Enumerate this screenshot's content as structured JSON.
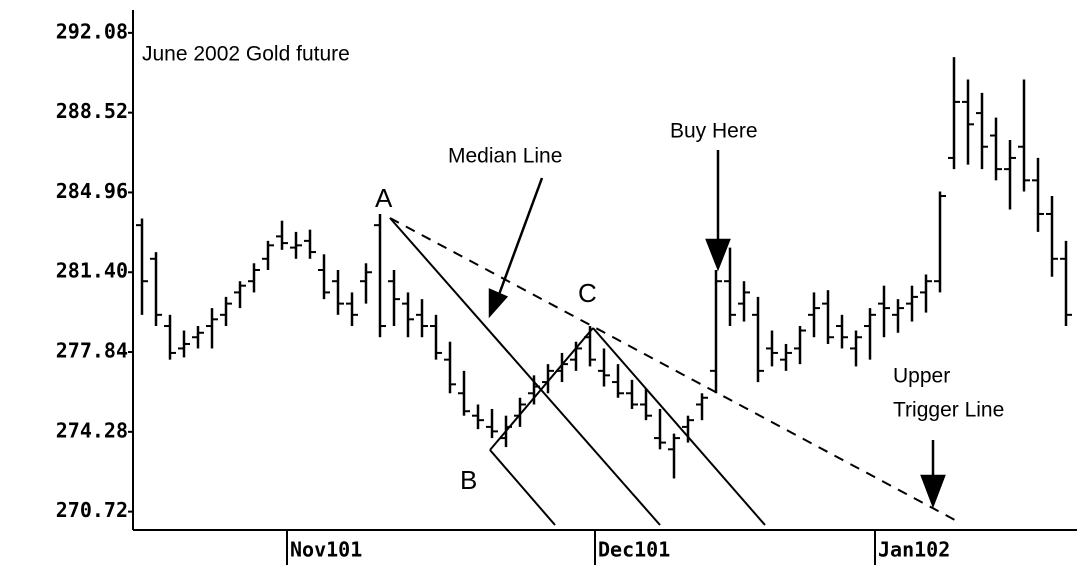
{
  "chart_data": {
    "type": "ohlc",
    "title": "June 2002 Gold future",
    "annotations": [
      "A",
      "B",
      "C",
      "Median Line",
      "Buy Here",
      "Upper",
      "Trigger Line"
    ],
    "color": "#000000",
    "ylim": [
      269.9,
      293.1
    ],
    "yticks": [
      270.72,
      274.28,
      277.84,
      {
        "value": 281.4,
        "label": "281.40"
      },
      284.96,
      288.52,
      292.08
    ],
    "categories": [
      null,
      null,
      null,
      null,
      null,
      null,
      null,
      null,
      null,
      null,
      "Nov101",
      null,
      null,
      null,
      null,
      null,
      null,
      null,
      null,
      null,
      null,
      null,
      null,
      null,
      null,
      null,
      null,
      null,
      null,
      null,
      null,
      null,
      "Dec101",
      null,
      null,
      null,
      null,
      null,
      null,
      null,
      null,
      null,
      null,
      null,
      null,
      null,
      null,
      null,
      null,
      null,
      null,
      null,
      "Jan102",
      null,
      null,
      null,
      null,
      null,
      null,
      null,
      null,
      null,
      null,
      null,
      null,
      null,
      null
    ],
    "open": [
      283.5,
      282.0,
      279.0,
      278.0,
      278.5,
      279.0,
      279.5,
      280.5,
      281.0,
      282.0,
      283.0,
      282.5,
      282.8,
      281.5,
      281.0,
      280.0,
      281.0,
      283.5,
      281.0,
      280.0,
      279.5,
      279.0,
      277.5,
      276.0,
      275.0,
      274.5,
      274.0,
      275.0,
      276.0,
      276.5,
      277.0,
      277.5,
      278.5,
      277.0,
      276.5,
      276.0,
      275.5,
      274.0,
      273.5,
      274.5,
      275.5,
      277.0,
      281.0,
      280.0,
      279.5,
      278.0,
      277.5,
      278.0,
      279.5,
      280.0,
      279.0,
      278.0,
      279.0,
      280.0,
      279.5,
      280.0,
      280.5,
      281.0,
      286.5,
      289.0,
      288.5,
      287.5,
      286.0,
      287.0,
      285.5,
      284.0,
      282.0
    ],
    "high": [
      283.8,
      282.3,
      279.5,
      278.8,
      279.0,
      279.8,
      280.3,
      281.0,
      281.8,
      282.8,
      283.7,
      283.2,
      283.3,
      282.2,
      281.5,
      280.5,
      281.8,
      284.0,
      281.5,
      280.5,
      280.2,
      279.5,
      278.3,
      277.0,
      275.5,
      275.3,
      275.0,
      275.8,
      276.8,
      277.3,
      277.8,
      278.3,
      279.0,
      278.0,
      277.3,
      276.6,
      276.2,
      275.3,
      274.2,
      275.0,
      276.0,
      281.5,
      282.5,
      281.0,
      280.3,
      278.8,
      278.2,
      279.0,
      280.5,
      280.6,
      279.5,
      278.8,
      279.8,
      280.8,
      280.2,
      280.8,
      281.3,
      285.0,
      291.0,
      290.0,
      289.4,
      288.3,
      287.3,
      290.0,
      286.5,
      284.8,
      282.8
    ],
    "low": [
      279.5,
      279.0,
      277.5,
      277.6,
      278.0,
      278.0,
      279.0,
      279.8,
      280.5,
      281.5,
      282.4,
      282.0,
      282.0,
      280.2,
      279.5,
      279.0,
      280.0,
      278.5,
      279.0,
      278.5,
      278.5,
      277.5,
      276.0,
      275.0,
      274.4,
      274.0,
      273.6,
      274.5,
      275.5,
      276.0,
      276.5,
      277.0,
      277.2,
      276.3,
      275.8,
      275.3,
      274.8,
      273.5,
      272.2,
      273.8,
      274.8,
      276.0,
      279.0,
      279.2,
      276.5,
      277.2,
      277.0,
      277.3,
      278.5,
      278.2,
      278.0,
      277.2,
      277.5,
      278.5,
      278.7,
      279.2,
      279.6,
      280.5,
      286.0,
      286.2,
      286.0,
      285.5,
      284.2,
      285.0,
      283.2,
      281.2,
      279.0
    ],
    "close": [
      281.0,
      279.5,
      277.8,
      278.2,
      278.7,
      279.3,
      280.0,
      280.8,
      281.5,
      282.6,
      282.7,
      282.6,
      282.3,
      280.5,
      280.0,
      279.5,
      281.4,
      279.0,
      280.2,
      279.3,
      279.0,
      277.8,
      276.4,
      275.2,
      274.8,
      274.3,
      274.5,
      275.5,
      276.3,
      277.0,
      277.3,
      278.0,
      277.5,
      276.8,
      276.0,
      275.5,
      275.0,
      273.8,
      274.0,
      274.8,
      275.8,
      281.0,
      279.5,
      280.5,
      277.0,
      277.8,
      277.8,
      278.8,
      279.8,
      278.5,
      278.5,
      278.5,
      279.5,
      279.8,
      279.8,
      280.3,
      281.0,
      284.8,
      289.0,
      288.0,
      287.0,
      286.0,
      286.5,
      285.5,
      284.0,
      282.0,
      279.5
    ]
  }
}
